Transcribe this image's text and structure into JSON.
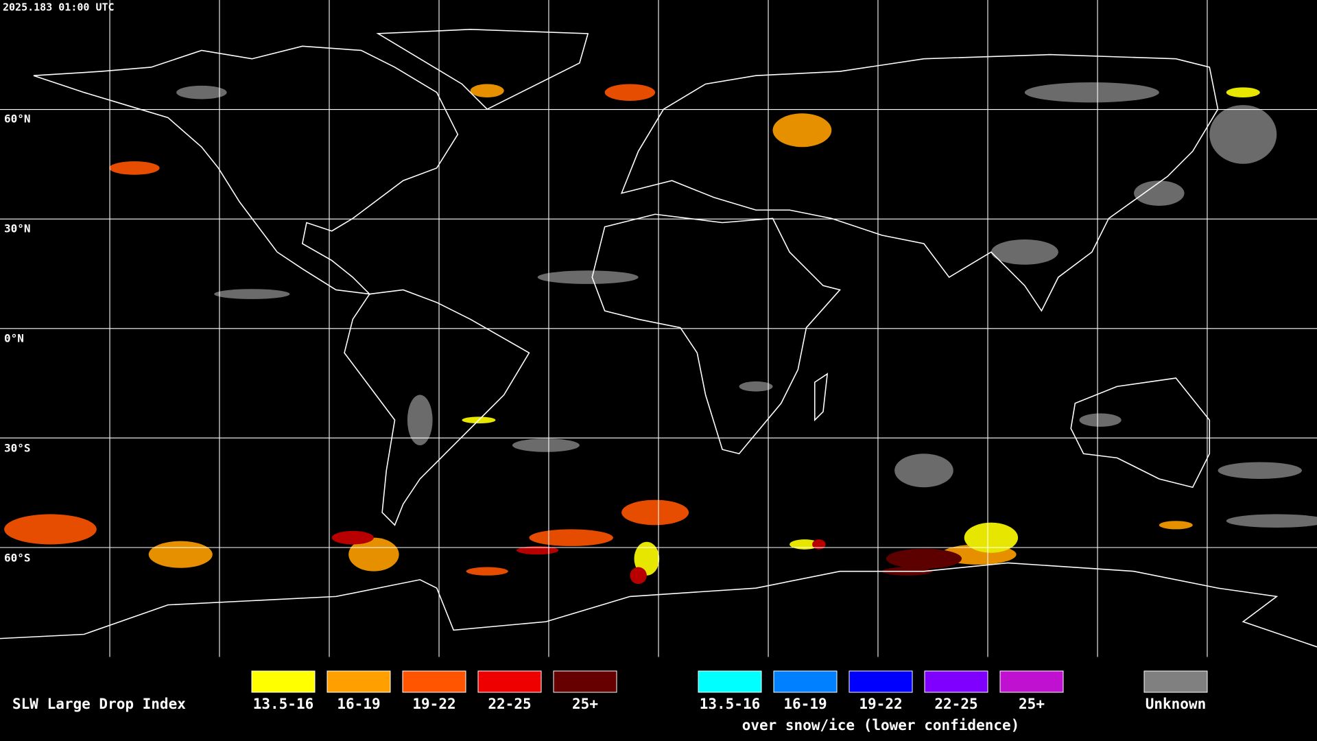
{
  "timestamp": "2025.183 01:00 UTC",
  "latitude_labels": [
    "60°N",
    "30°N",
    "0°N",
    "30°S",
    "60°S"
  ],
  "legend": {
    "title": "SLW Large Drop Index",
    "items": [
      {
        "label": "13.5-16",
        "color": "#ffff00"
      },
      {
        "label": "16-19",
        "color": "#ffa000"
      },
      {
        "label": "19-22",
        "color": "#ff5500"
      },
      {
        "label": "22-25",
        "color": "#ee0000"
      },
      {
        "label": "25+",
        "color": "#660000"
      }
    ],
    "snow_ice_items": [
      {
        "label": "13.5-16",
        "color": "#00ffff"
      },
      {
        "label": "16-19",
        "color": "#0080ff"
      },
      {
        "label": "19-22",
        "color": "#0000ff"
      },
      {
        "label": "22-25",
        "color": "#8000ff"
      },
      {
        "label": "25+",
        "color": "#c010d0"
      }
    ],
    "snow_ice_note": "over snow/ice (lower confidence)",
    "unknown": {
      "label": "Unknown",
      "color": "#808080"
    }
  }
}
